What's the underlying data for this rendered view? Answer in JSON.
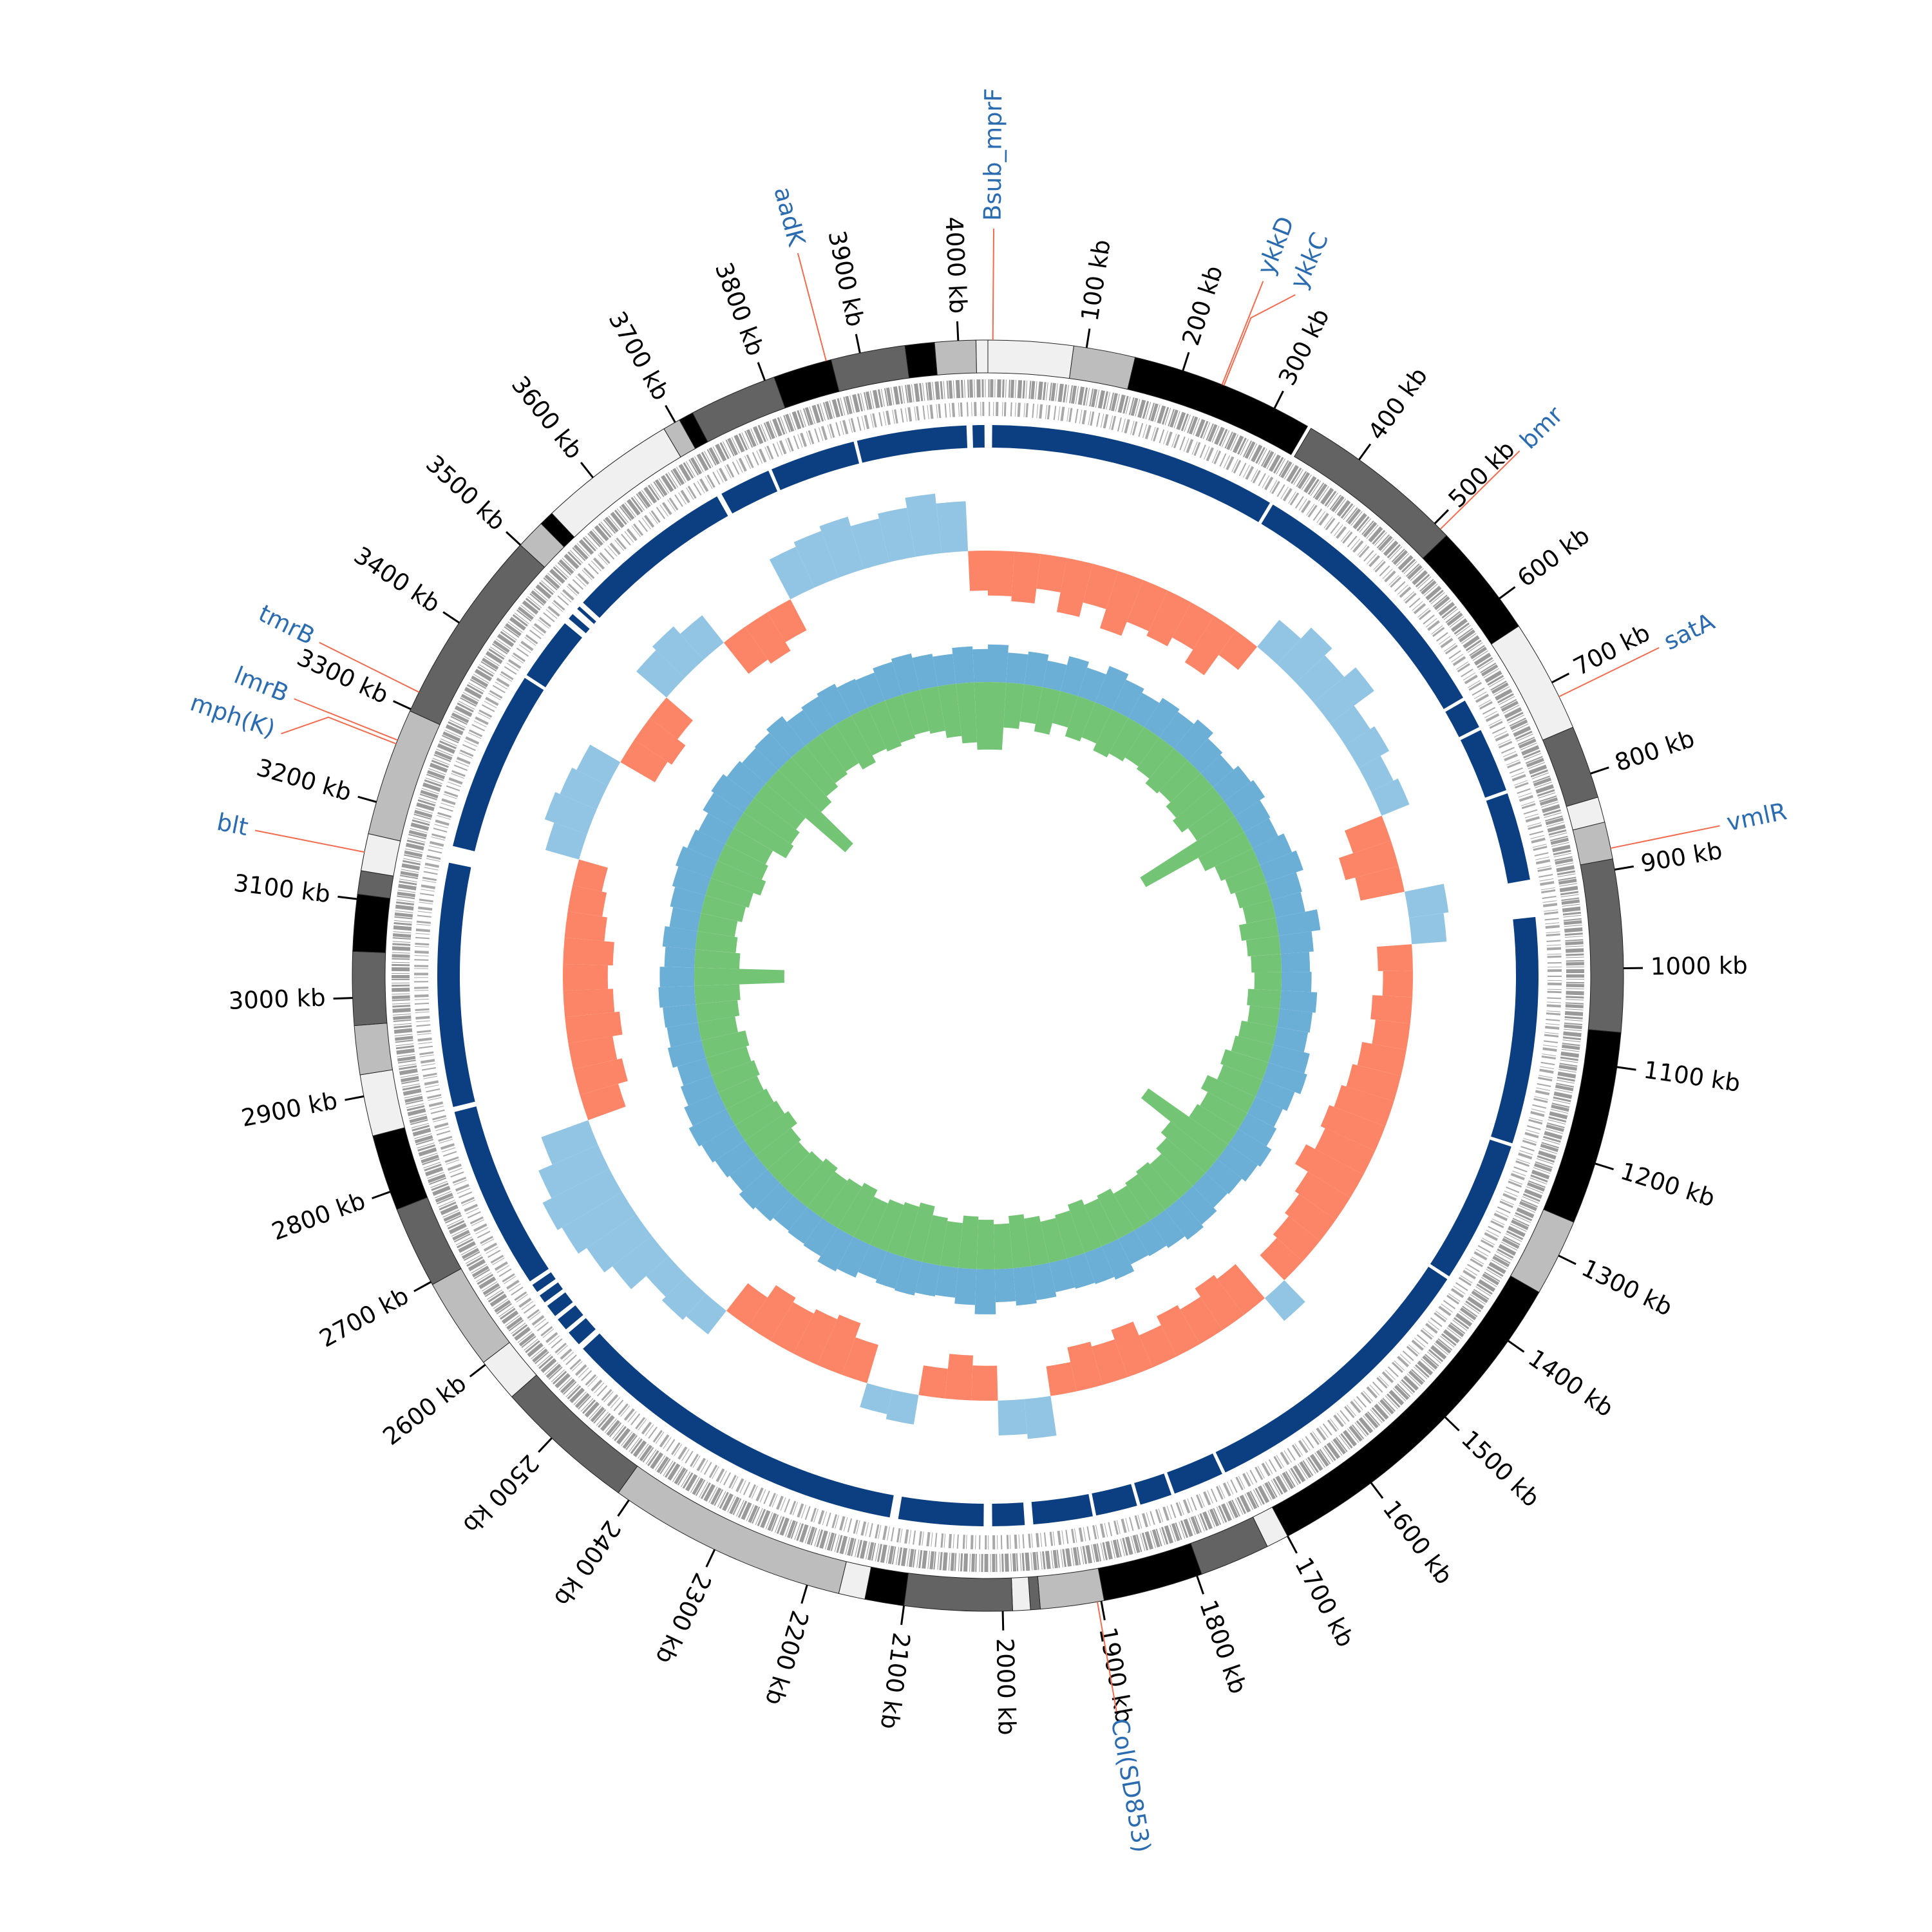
{
  "chart_data": {
    "type": "circos",
    "xlim": [
      0,
      4030
    ],
    "xticks": [
      {
        "value": 100,
        "label": "100 kb"
      },
      {
        "value": 200,
        "label": "200 kb"
      },
      {
        "value": 300,
        "label": "300 kb"
      },
      {
        "value": 400,
        "label": "400 kb"
      },
      {
        "value": 500,
        "label": "500 kb"
      },
      {
        "value": 600,
        "label": "600 kb"
      },
      {
        "value": 700,
        "label": "700 kb"
      },
      {
        "value": 800,
        "label": "800 kb"
      },
      {
        "value": 900,
        "label": "900 kb"
      },
      {
        "value": 1000,
        "label": "1000 kb"
      },
      {
        "value": 1100,
        "label": "1100 kb"
      },
      {
        "value": 1200,
        "label": "1200 kb"
      },
      {
        "value": 1300,
        "label": "1300 kb"
      },
      {
        "value": 1400,
        "label": "1400 kb"
      },
      {
        "value": 1500,
        "label": "1500 kb"
      },
      {
        "value": 1600,
        "label": "1600 kb"
      },
      {
        "value": 1700,
        "label": "1700 kb"
      },
      {
        "value": 1800,
        "label": "1800 kb"
      },
      {
        "value": 1900,
        "label": "1900 kb"
      },
      {
        "value": 2000,
        "label": "2000 kb"
      },
      {
        "value": 2100,
        "label": "2100 kb"
      },
      {
        "value": 2200,
        "label": "2200 kb"
      },
      {
        "value": 2300,
        "label": "2300 kb"
      },
      {
        "value": 2400,
        "label": "2400 kb"
      },
      {
        "value": 2500,
        "label": "2500 kb"
      },
      {
        "value": 2600,
        "label": "2600 kb"
      },
      {
        "value": 2700,
        "label": "2700 kb"
      },
      {
        "value": 2800,
        "label": "2800 kb"
      },
      {
        "value": 2900,
        "label": "2900 kb"
      },
      {
        "value": 3000,
        "label": "3000 kb"
      },
      {
        "value": 3100,
        "label": "3100 kb"
      },
      {
        "value": 3200,
        "label": "3200 kb"
      },
      {
        "value": 3300,
        "label": "3300 kb"
      },
      {
        "value": 3400,
        "label": "3400 kb"
      },
      {
        "value": 3500,
        "label": "3500 kb"
      },
      {
        "value": 3600,
        "label": "3600 kb"
      },
      {
        "value": 3700,
        "label": "3700 kb"
      },
      {
        "value": 3800,
        "label": "3800 kb"
      },
      {
        "value": 3900,
        "label": "3900 kb"
      },
      {
        "value": 4000,
        "label": "4000 kb"
      }
    ],
    "contigs": {
      "starts": [
        0,
        87,
        150,
        342,
        517,
        634,
        750,
        825,
        851,
        889,
        1065,
        1263,
        1342,
        1700,
        1723,
        1795,
        1897,
        1962,
        1972,
        1990,
        2100,
        2140,
        2167,
        2413,
        2558,
        2603,
        2697,
        2781,
        2859,
        2922,
        2972,
        3047,
        3105,
        3129,
        3167,
        3298,
        3500,
        3530,
        3545,
        3687,
        3705,
        3720,
        3810,
        3870,
        3946,
        3976,
        4018
      ],
      "ends": [
        87,
        150,
        338,
        517,
        634,
        750,
        825,
        851,
        889,
        1065,
        1263,
        1342,
        1700,
        1723,
        1795,
        1897,
        1962,
        1972,
        1990,
        2100,
        2140,
        2167,
        2413,
        2558,
        2603,
        2697,
        2781,
        2859,
        2922,
        2972,
        3047,
        3105,
        3129,
        3167,
        3298,
        3500,
        3530,
        3545,
        3687,
        3705,
        3720,
        3810,
        3870,
        3946,
        3976,
        4018,
        4030
      ],
      "colors": [
        "#f0f0f0",
        "#bdbdbd",
        "#000000",
        "#636363",
        "#000000",
        "#f0f0f0",
        "#636363",
        "#f0f0f0",
        "#bdbdbd",
        "#636363",
        "#000000",
        "#bdbdbd",
        "#000000",
        "#f0f0f0",
        "#636363",
        "#000000",
        "#bdbdbd",
        "#636363",
        "#f0f0f0",
        "#636363",
        "#000000",
        "#f0f0f0",
        "#bdbdbd",
        "#636363",
        "#f0f0f0",
        "#bdbdbd",
        "#636363",
        "#000000",
        "#f0f0f0",
        "#bdbdbd",
        "#636363",
        "#000000",
        "#636363",
        "#f0f0f0",
        "#bdbdbd",
        "#636363",
        "#bdbdbd",
        "#000000",
        "#f0f0f0",
        "#bdbdbd",
        "#000000",
        "#636363",
        "#000000",
        "#636363",
        "#000000",
        "#bdbdbd",
        "#f0f0f0"
      ]
    },
    "alignment": {
      "color": "#0b3f82",
      "starts": [
        5,
        349,
        672,
        711,
        791,
        939,
        1210,
        1382,
        1733,
        1797,
        1839,
        1892,
        1972,
        2020,
        2130,
        2552,
        2575,
        2595,
        2615,
        2630,
        2645,
        2868,
        3175,
        3393,
        3475,
        3490,
        3500,
        3706,
        3771,
        3876,
        4012
      ],
      "ends": [
        345,
        668,
        707,
        787,
        895,
        1206,
        1378,
        1729,
        1793,
        1835,
        1888,
        1962,
        2010,
        2120,
        2545,
        2570,
        2590,
        2610,
        2625,
        2640,
        2862,
        3155,
        3389,
        3468,
        3482,
        3494,
        3700,
        3767,
        3872,
        4005,
        4026
      ]
    },
    "skew": {
      "ylim": [
        -1,
        1
      ],
      "colors": {
        "positive": "#92c5e3",
        "negative": "#fb8566"
      },
      "x": [
        0,
        40,
        80,
        120,
        160,
        200,
        240,
        280,
        320,
        360,
        400,
        440,
        480,
        520,
        560,
        600,
        640,
        680,
        720,
        760,
        800,
        840,
        880,
        920,
        960,
        1000,
        1040,
        1080,
        1120,
        1160,
        1200,
        1240,
        1280,
        1320,
        1360,
        1400,
        1440,
        1480,
        1520,
        1560,
        1600,
        1640,
        1680,
        1720,
        1760,
        1800,
        1840,
        1880,
        1920,
        1960,
        2000,
        2040,
        2080,
        2120,
        2160,
        2200,
        2240,
        2280,
        2320,
        2360,
        2400,
        2440,
        2480,
        2520,
        2560,
        2600,
        2640,
        2680,
        2720,
        2760,
        2800,
        2840,
        2880,
        2920,
        2960,
        3000,
        3040,
        3080,
        3120,
        3160,
        3200,
        3240,
        3280,
        3320,
        3360,
        3400,
        3440,
        3480,
        3520,
        3560,
        3600,
        3640,
        3680,
        3720,
        3760,
        3800,
        3840,
        3880,
        3920,
        3960,
        4000
      ],
      "values": [
        -0.45,
        -0.5,
        -0.35,
        -0.55,
        -0.4,
        -0.6,
        -0.45,
        -0.5,
        -0.4,
        -0.55,
        -0.3,
        0.35,
        0.5,
        0.4,
        0.55,
        0.3,
        0.35,
        0.25,
        0.3,
        -0.4,
        -0.55,
        -0.45,
        0.4,
        0.35,
        -0.35,
        -0.3,
        -0.4,
        -0.35,
        -0.45,
        -0.5,
        -0.55,
        -0.6,
        -0.55,
        -0.65,
        -0.5,
        -0.45,
        -0.4,
        -0.35,
        0.3,
        -0.45,
        -0.5,
        -0.4,
        -0.45,
        -0.35,
        -0.5,
        -0.4,
        -0.45,
        -0.3,
        0.4,
        0.35,
        -0.35,
        -0.45,
        -0.3,
        0.3,
        0.25,
        -0.4,
        -0.55,
        -0.5,
        -0.45,
        -0.5,
        -0.35,
        0.3,
        0.35,
        0.3,
        0.5,
        0.6,
        0.7,
        0.75,
        0.65,
        0.5,
        -0.4,
        -0.5,
        -0.45,
        -0.55,
        -0.5,
        -0.45,
        -0.5,
        -0.4,
        -0.35,
        -0.3,
        0.35,
        0.45,
        0.4,
        0.35,
        -0.4,
        -0.45,
        -0.35,
        0.4,
        0.45,
        0.35,
        -0.4,
        -0.45,
        -0.35,
        0.45,
        0.5,
        0.55,
        0.45,
        0.5,
        0.6,
        0.5,
        -0.4
      ]
    },
    "content": {
      "ylim": [
        -1,
        1
      ],
      "series": [
        {
          "color": "#6baed6",
          "values": [
            0.25,
            0.2,
            0.22,
            0.18,
            0.24,
            0.2,
            0.26,
            0.22,
            0.19,
            0.23,
            0.21,
            0.25,
            0.2,
            0.18,
            0.22,
            0.24,
            0.2,
            0.19,
            0.23,
            0.26,
            0.21,
            0.2,
            0.28,
            0.22,
            0.19,
            0.2,
            0.24,
            0.22,
            0.21,
            0.25,
            0.27,
            0.23,
            0.2,
            0.22,
            0.26,
            0.24,
            0.21,
            0.2,
            0.23,
            0.25,
            0.22,
            0.2,
            0.19,
            0.24,
            0.22,
            0.21,
            0.2,
            0.23,
            0.25,
            0.22,
            0.3,
            0.24,
            0.2,
            0.21,
            0.23,
            0.22,
            0.2,
            0.24,
            0.26,
            0.22,
            0.21,
            0.2,
            0.23,
            0.25,
            0.22,
            0.24,
            0.26,
            0.28,
            0.25,
            0.22,
            0.2,
            0.23,
            0.21,
            0.22,
            0.24,
            0.23,
            0.2,
            0.22,
            0.19,
            0.21,
            0.23,
            0.25,
            0.22,
            0.2,
            0.24,
            0.26,
            0.23,
            0.21,
            0.22,
            0.25,
            0.2,
            0.22,
            0.24,
            0.21,
            0.2,
            0.23,
            0.25,
            0.22,
            0.2,
            0.24,
            0.22
          ]
        },
        {
          "color": "#74c476",
          "values": [
            -0.45,
            -0.3,
            -0.25,
            -0.3,
            -0.22,
            -0.28,
            -0.25,
            -0.3,
            -0.27,
            -0.24,
            -0.26,
            -0.3,
            -0.28,
            -0.32,
            -0.35,
            -0.3,
            -0.75,
            -0.35,
            -0.28,
            -0.25,
            -0.22,
            -0.2,
            -0.25,
            -0.22,
            -0.2,
            -0.18,
            -0.22,
            -0.2,
            -0.24,
            -0.26,
            -0.3,
            -0.28,
            -0.35,
            -0.3,
            -0.32,
            -0.65,
            -0.4,
            -0.35,
            -0.3,
            -0.32,
            -0.3,
            -0.28,
            -0.32,
            -0.3,
            -0.34,
            -0.3,
            -0.28,
            -0.32,
            -0.35,
            -0.3,
            -0.33,
            -0.35,
            -0.3,
            -0.32,
            -0.38,
            -0.35,
            -0.33,
            -0.3,
            -0.35,
            -0.32,
            -0.3,
            -0.33,
            -0.3,
            -0.28,
            -0.3,
            -0.35,
            -0.32,
            -0.3,
            -0.28,
            -0.3,
            -0.28,
            -0.3,
            -0.25,
            -0.28,
            -0.3,
            -0.6,
            -0.3,
            -0.27,
            -0.25,
            -0.28,
            -0.3,
            -0.35,
            -0.32,
            -0.3,
            -0.4,
            -0.38,
            -0.35,
            -0.7,
            -0.4,
            -0.35,
            -0.32,
            -0.3,
            -0.35,
            -0.3,
            -0.32,
            -0.3,
            -0.28,
            -0.3,
            -0.35,
            -0.4,
            -0.45
          ]
        }
      ]
    },
    "genes": {
      "color": "#2b6cb0",
      "line_color": "#f26b4f",
      "labels": [
        "Bsub_mprF",
        "aadK",
        "ykkD",
        "ykkC",
        "bmr",
        "satA",
        "vmlR",
        "Col(SD853)",
        "blt",
        "tmrB",
        "lmrB",
        "mph(K)"
      ],
      "positions": [
        5,
        3865,
        242,
        244,
        508,
        716,
        878,
        1904,
        3148,
        3319,
        3266,
        3262
      ]
    }
  }
}
